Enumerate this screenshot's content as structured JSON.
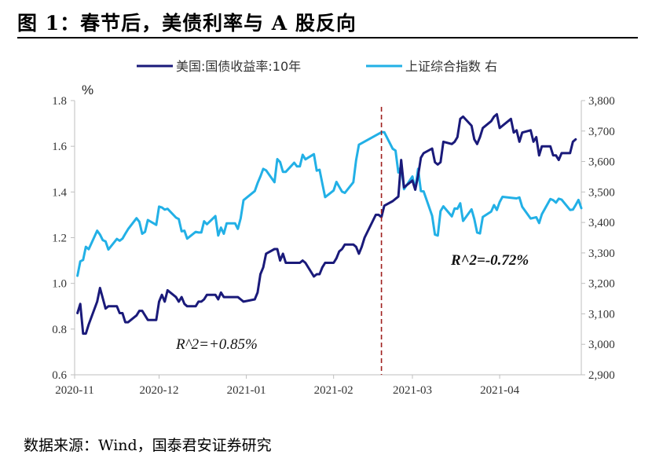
{
  "title": "图 1：春节后，美债利率与 A 股反向",
  "source": "数据来源：Wind，国泰君安证券研究",
  "colors": {
    "us10y": "#1a1a7a",
    "shcomp": "#22b0e6",
    "divider": "#a0201e",
    "axis": "#bfbfbf"
  },
  "chart_data": {
    "type": "line",
    "ylabel": "%",
    "x_ticks": [
      "2020-11",
      "2020-12",
      "2021-01",
      "2021-02",
      "2021-03",
      "2021-04"
    ],
    "x_range": [
      "2020-11-01",
      "2021-04-30"
    ],
    "y_left": {
      "ylim": [
        0.6,
        1.8
      ],
      "ticks": [
        "0.6",
        "0.8",
        "1.0",
        "1.2",
        "1.4",
        "1.6",
        "1.8"
      ]
    },
    "y_right": {
      "ylim": [
        2900,
        3800
      ],
      "ticks": [
        "2,900",
        "3,000",
        "3,100",
        "3,200",
        "3,300",
        "3,400",
        "3,500",
        "3,600",
        "3,700",
        "3,800"
      ]
    },
    "divider_date": "2021-02-18",
    "legend": [
      "美国:国债收益率:10年",
      "上证综合指数 右"
    ],
    "annotations": [
      "R^2=+0.85%",
      "R^2=-0.72%"
    ],
    "series": [
      {
        "name": "美国:国债收益率:10年",
        "axis": "left",
        "x": [
          "2020-11-02",
          "2020-11-03",
          "2020-11-04",
          "2020-11-05",
          "2020-11-06",
          "2020-11-09",
          "2020-11-10",
          "2020-11-12",
          "2020-11-13",
          "2020-11-16",
          "2020-11-17",
          "2020-11-18",
          "2020-11-19",
          "2020-11-20",
          "2020-11-23",
          "2020-11-24",
          "2020-11-25",
          "2020-11-27",
          "2020-11-30",
          "2020-12-01",
          "2020-12-02",
          "2020-12-03",
          "2020-12-04",
          "2020-12-07",
          "2020-12-08",
          "2020-12-09",
          "2020-12-10",
          "2020-12-11",
          "2020-12-14",
          "2020-12-15",
          "2020-12-16",
          "2020-12-17",
          "2020-12-18",
          "2020-12-21",
          "2020-12-22",
          "2020-12-23",
          "2020-12-24",
          "2020-12-28",
          "2020-12-29",
          "2020-12-30",
          "2020-12-31",
          "2021-01-04",
          "2021-01-05",
          "2021-01-06",
          "2021-01-07",
          "2021-01-08",
          "2021-01-11",
          "2021-01-12",
          "2021-01-13",
          "2021-01-14",
          "2021-01-15",
          "2021-01-19",
          "2021-01-20",
          "2021-01-21",
          "2021-01-22",
          "2021-01-25",
          "2021-01-26",
          "2021-01-27",
          "2021-01-28",
          "2021-01-29",
          "2021-02-01",
          "2021-02-02",
          "2021-02-03",
          "2021-02-04",
          "2021-02-05",
          "2021-02-08",
          "2021-02-09",
          "2021-02-10",
          "2021-02-11",
          "2021-02-12",
          "2021-02-16",
          "2021-02-17",
          "2021-02-18",
          "2021-02-19",
          "2021-02-22",
          "2021-02-23",
          "2021-02-24",
          "2021-02-25",
          "2021-02-26",
          "2021-03-01",
          "2021-03-02",
          "2021-03-03",
          "2021-03-04",
          "2021-03-05",
          "2021-03-08",
          "2021-03-09",
          "2021-03-10",
          "2021-03-11",
          "2021-03-12",
          "2021-03-15",
          "2021-03-16",
          "2021-03-17",
          "2021-03-18",
          "2021-03-19",
          "2021-03-22",
          "2021-03-23",
          "2021-03-24",
          "2021-03-25",
          "2021-03-26",
          "2021-03-29",
          "2021-03-30",
          "2021-03-31",
          "2021-04-01",
          "2021-04-05",
          "2021-04-06",
          "2021-04-07",
          "2021-04-08",
          "2021-04-09",
          "2021-04-12",
          "2021-04-13",
          "2021-04-14",
          "2021-04-15",
          "2021-04-16",
          "2021-04-19",
          "2021-04-20",
          "2021-04-21",
          "2021-04-22",
          "2021-04-23",
          "2021-04-26",
          "2021-04-27",
          "2021-04-28"
        ],
        "values": [
          0.87,
          0.91,
          0.78,
          0.78,
          0.82,
          0.92,
          0.98,
          0.89,
          0.9,
          0.9,
          0.87,
          0.87,
          0.83,
          0.83,
          0.86,
          0.88,
          0.88,
          0.84,
          0.84,
          0.92,
          0.95,
          0.92,
          0.97,
          0.94,
          0.92,
          0.94,
          0.91,
          0.9,
          0.9,
          0.92,
          0.92,
          0.93,
          0.95,
          0.95,
          0.93,
          0.96,
          0.94,
          0.94,
          0.94,
          0.93,
          0.92,
          0.93,
          0.96,
          1.04,
          1.07,
          1.13,
          1.15,
          1.15,
          1.1,
          1.13,
          1.09,
          1.09,
          1.09,
          1.1,
          1.09,
          1.03,
          1.04,
          1.04,
          1.07,
          1.09,
          1.09,
          1.11,
          1.14,
          1.15,
          1.17,
          1.17,
          1.16,
          1.13,
          1.16,
          1.2,
          1.3,
          1.3,
          1.29,
          1.34,
          1.36,
          1.37,
          1.38,
          1.54,
          1.42,
          1.45,
          1.41,
          1.47,
          1.55,
          1.57,
          1.59,
          1.53,
          1.52,
          1.53,
          1.62,
          1.61,
          1.62,
          1.64,
          1.72,
          1.73,
          1.69,
          1.63,
          1.61,
          1.64,
          1.68,
          1.71,
          1.73,
          1.74,
          1.68,
          1.72,
          1.66,
          1.67,
          1.62,
          1.66,
          1.67,
          1.62,
          1.64,
          1.56,
          1.6,
          1.6,
          1.56,
          1.56,
          1.54,
          1.57,
          1.57,
          1.62,
          1.63
        ]
      },
      {
        "name": "上证综合指数 右",
        "axis": "right",
        "x": [
          "2020-11-02",
          "2020-11-03",
          "2020-11-04",
          "2020-11-05",
          "2020-11-06",
          "2020-11-09",
          "2020-11-10",
          "2020-11-11",
          "2020-11-12",
          "2020-11-13",
          "2020-11-16",
          "2020-11-17",
          "2020-11-18",
          "2020-11-19",
          "2020-11-20",
          "2020-11-23",
          "2020-11-24",
          "2020-11-25",
          "2020-11-26",
          "2020-11-27",
          "2020-11-30",
          "2020-12-01",
          "2020-12-02",
          "2020-12-03",
          "2020-12-04",
          "2020-12-07",
          "2020-12-08",
          "2020-12-09",
          "2020-12-10",
          "2020-12-11",
          "2020-12-14",
          "2020-12-15",
          "2020-12-16",
          "2020-12-17",
          "2020-12-18",
          "2020-12-21",
          "2020-12-22",
          "2020-12-23",
          "2020-12-24",
          "2020-12-25",
          "2020-12-28",
          "2020-12-29",
          "2020-12-30",
          "2020-12-31",
          "2021-01-04",
          "2021-01-05",
          "2021-01-06",
          "2021-01-07",
          "2021-01-08",
          "2021-01-11",
          "2021-01-12",
          "2021-01-13",
          "2021-01-14",
          "2021-01-15",
          "2021-01-18",
          "2021-01-19",
          "2021-01-20",
          "2021-01-21",
          "2021-01-22",
          "2021-01-25",
          "2021-01-26",
          "2021-01-27",
          "2021-01-28",
          "2021-01-29",
          "2021-02-01",
          "2021-02-02",
          "2021-02-03",
          "2021-02-04",
          "2021-02-05",
          "2021-02-08",
          "2021-02-09",
          "2021-02-10",
          "2021-02-18",
          "2021-02-19",
          "2021-02-22",
          "2021-02-23",
          "2021-02-24",
          "2021-02-25",
          "2021-02-26",
          "2021-03-01",
          "2021-03-02",
          "2021-03-03",
          "2021-03-04",
          "2021-03-05",
          "2021-03-08",
          "2021-03-09",
          "2021-03-10",
          "2021-03-11",
          "2021-03-12",
          "2021-03-15",
          "2021-03-16",
          "2021-03-17",
          "2021-03-18",
          "2021-03-19",
          "2021-03-22",
          "2021-03-23",
          "2021-03-24",
          "2021-03-25",
          "2021-03-26",
          "2021-03-29",
          "2021-03-30",
          "2021-03-31",
          "2021-04-01",
          "2021-04-02",
          "2021-04-06",
          "2021-04-07",
          "2021-04-08",
          "2021-04-09",
          "2021-04-12",
          "2021-04-13",
          "2021-04-14",
          "2021-04-15",
          "2021-04-16",
          "2021-04-19",
          "2021-04-20",
          "2021-04-21",
          "2021-04-22",
          "2021-04-23",
          "2021-04-26",
          "2021-04-27",
          "2021-04-28",
          "2021-04-29",
          "2021-04-30"
        ],
        "values": [
          3225,
          3272,
          3277,
          3320,
          3312,
          3373,
          3360,
          3342,
          3338,
          3311,
          3346,
          3340,
          3347,
          3363,
          3378,
          3414,
          3402,
          3363,
          3369,
          3408,
          3392,
          3452,
          3449,
          3442,
          3445,
          3416,
          3411,
          3371,
          3373,
          3347,
          3369,
          3367,
          3367,
          3404,
          3394,
          3421,
          3357,
          3383,
          3363,
          3397,
          3397,
          3379,
          3414,
          3473,
          3503,
          3529,
          3551,
          3576,
          3571,
          3532,
          3608,
          3598,
          3566,
          3566,
          3596,
          3584,
          3584,
          3622,
          3607,
          3624,
          3570,
          3573,
          3528,
          3483,
          3505,
          3533,
          3517,
          3501,
          3497,
          3532,
          3604,
          3655,
          3696,
          3696,
          3642,
          3636,
          3564,
          3585,
          3509,
          3551,
          3508,
          3576,
          3503,
          3502,
          3422,
          3360,
          3357,
          3437,
          3453,
          3420,
          3446,
          3445,
          3463,
          3405,
          3443,
          3411,
          3367,
          3364,
          3418,
          3436,
          3457,
          3441,
          3467,
          3484,
          3480,
          3479,
          3482,
          3451,
          3413,
          3415,
          3417,
          3398,
          3427,
          3477,
          3473,
          3465,
          3478,
          3475,
          3441,
          3442,
          3457,
          3474,
          3447
        ]
      }
    ]
  }
}
